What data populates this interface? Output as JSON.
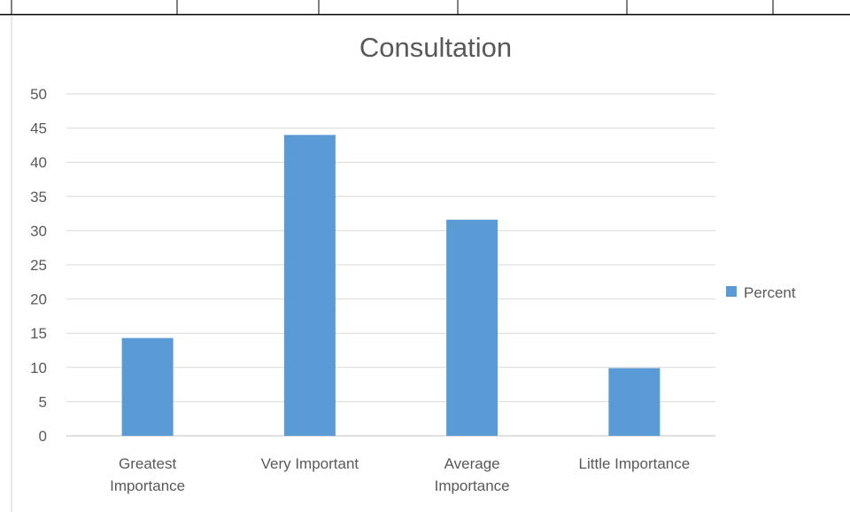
{
  "chart_data": {
    "type": "bar",
    "title": "Consultation",
    "categories": [
      [
        "Greatest",
        "Importance"
      ],
      [
        "Very Important"
      ],
      [
        "Average",
        "Importance"
      ],
      [
        "Little Importance"
      ]
    ],
    "series": [
      {
        "name": "Percent",
        "color": "#5b9bd5",
        "values": [
          14.3,
          44.0,
          31.6,
          9.9
        ]
      }
    ],
    "ylim": [
      0,
      50
    ],
    "yticks": [
      0,
      5,
      10,
      15,
      20,
      25,
      30,
      35,
      40,
      45,
      50
    ],
    "grid": true,
    "legend_position": "right",
    "gridline_color": "#d9d9d9",
    "axis_color": "#bfbfbf"
  }
}
